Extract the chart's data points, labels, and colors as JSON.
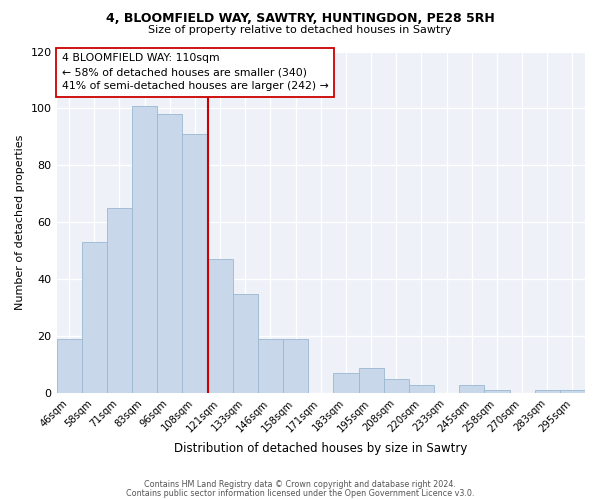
{
  "title": "4, BLOOMFIELD WAY, SAWTRY, HUNTINGDON, PE28 5RH",
  "subtitle": "Size of property relative to detached houses in Sawtry",
  "xlabel": "Distribution of detached houses by size in Sawtry",
  "ylabel": "Number of detached properties",
  "bar_color": "#c8d8ea",
  "bar_edge_color": "#9ab8d0",
  "categories": [
    "46sqm",
    "58sqm",
    "71sqm",
    "83sqm",
    "96sqm",
    "108sqm",
    "121sqm",
    "133sqm",
    "146sqm",
    "158sqm",
    "171sqm",
    "183sqm",
    "195sqm",
    "208sqm",
    "220sqm",
    "233sqm",
    "245sqm",
    "258sqm",
    "270sqm",
    "283sqm",
    "295sqm"
  ],
  "values": [
    19,
    53,
    65,
    101,
    98,
    91,
    47,
    35,
    19,
    19,
    0,
    7,
    9,
    5,
    3,
    0,
    3,
    1,
    0,
    1,
    1
  ],
  "ylim": [
    0,
    120
  ],
  "yticks": [
    0,
    20,
    40,
    60,
    80,
    100,
    120
  ],
  "annotation_title": "4 BLOOMFIELD WAY: 110sqm",
  "annotation_line1": "← 58% of detached houses are smaller (340)",
  "annotation_line2": "41% of semi-detached houses are larger (242) →",
  "footer1": "Contains HM Land Registry data © Crown copyright and database right 2024.",
  "footer2": "Contains public sector information licensed under the Open Government Licence v3.0.",
  "ref_line_color": "#cc0000",
  "background_color": "#eef2f8",
  "grid_color": "#ffffff",
  "ref_line_index": 5.5
}
